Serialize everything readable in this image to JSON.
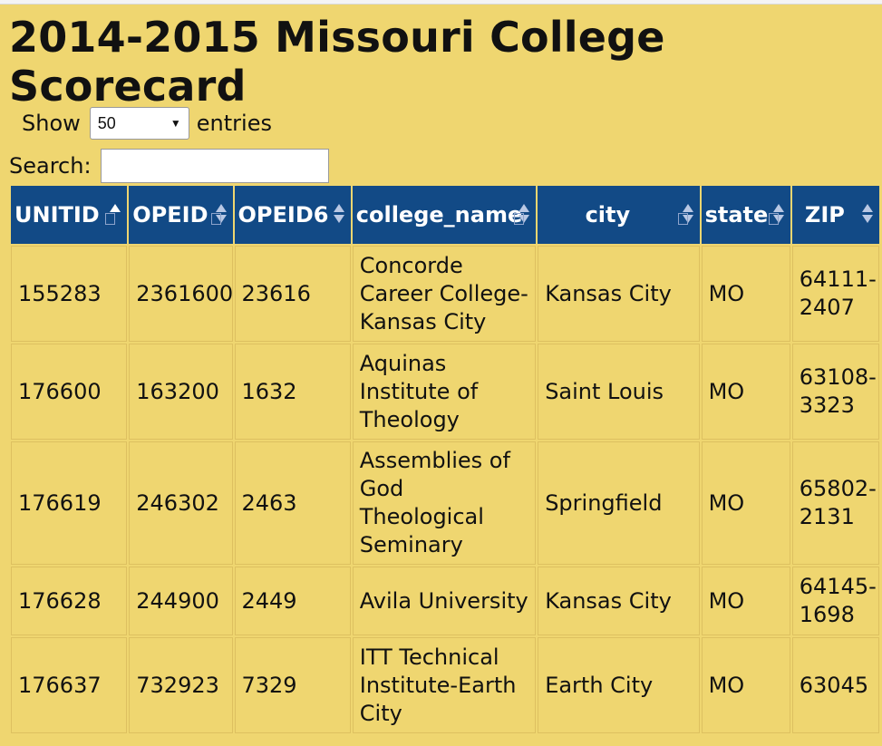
{
  "page": {
    "title": "2014-2015 Missouri College Scorecard"
  },
  "length_control": {
    "prefix": "Show",
    "selected": "50",
    "suffix": "entries"
  },
  "search": {
    "label": "Search:",
    "value": ""
  },
  "table": {
    "columns": [
      "UNITID",
      "OPEID",
      "OPEID6",
      "college_name",
      "city",
      "state",
      "ZIP"
    ],
    "sorted_column": "UNITID",
    "sort_direction": "asc",
    "rows": [
      [
        "155283",
        "2361600",
        "23616",
        "Concorde Career College-Kansas City",
        "Kansas City",
        "MO",
        "64111-2407"
      ],
      [
        "176600",
        "163200",
        "1632",
        "Aquinas Institute of Theology",
        "Saint Louis",
        "MO",
        "63108-3323"
      ],
      [
        "176619",
        "246302",
        "2463",
        "Assemblies of God Theological Seminary",
        "Springfield",
        "MO",
        "65802-2131"
      ],
      [
        "176628",
        "244900",
        "2449",
        "Avila University",
        "Kansas City",
        "MO",
        "64145-1698"
      ],
      [
        "176637",
        "732923",
        "7329",
        "ITT Technical Institute-Earth City",
        "Earth City",
        "MO",
        "63045"
      ]
    ]
  },
  "colors": {
    "header_bg": "#124a86",
    "page_bg": "#efd670"
  }
}
